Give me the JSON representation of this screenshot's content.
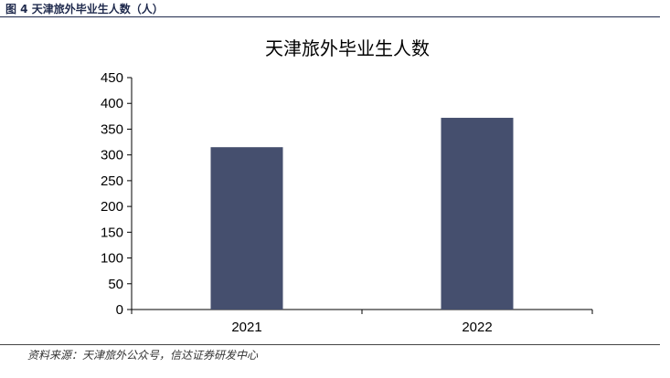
{
  "caption": "图 4 天津旅外毕业生人数（人）",
  "source": "资料来源：天津旅外公众号，信达证券研发中心",
  "chart_data": {
    "type": "bar",
    "title": "天津旅外毕业生人数",
    "categories": [
      "2021",
      "2022"
    ],
    "values": [
      315,
      372
    ],
    "ylim": [
      0,
      450
    ],
    "yticks": [
      0,
      50,
      100,
      150,
      200,
      250,
      300,
      350,
      400,
      450
    ],
    "xlabel": "",
    "ylabel": "",
    "bar_color": "#454f6e",
    "grid": false,
    "legend": "none"
  }
}
